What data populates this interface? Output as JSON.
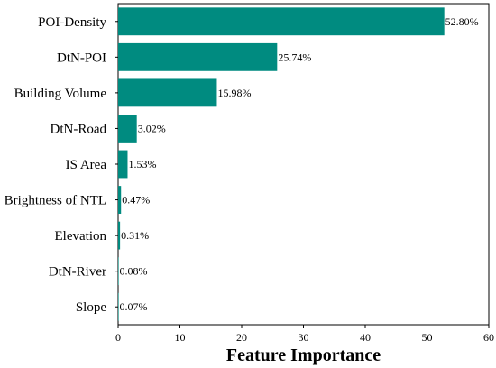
{
  "chart_data": {
    "type": "bar",
    "orientation": "horizontal",
    "title": "",
    "xlabel": "Feature Importance",
    "ylabel": "",
    "xlim": [
      0,
      60
    ],
    "xticks": [
      0,
      10,
      20,
      30,
      40,
      50,
      60
    ],
    "grid": false,
    "legend": "none",
    "bar_color": "#008B80",
    "categories": [
      "POI-Density",
      "DtN-POI",
      "Building Volume",
      "DtN-Road",
      "IS Area",
      "Brightness of NTL",
      "Elevation",
      "DtN-River",
      "Slope"
    ],
    "values": [
      52.8,
      25.74,
      15.98,
      3.02,
      1.53,
      0.47,
      0.31,
      0.08,
      0.07
    ],
    "data_labels": [
      "52.80%",
      "25.74%",
      "15.98%",
      "3.02%",
      "1.53%",
      "0.47%",
      "0.31%",
      "0.08%",
      "0.07%"
    ]
  }
}
